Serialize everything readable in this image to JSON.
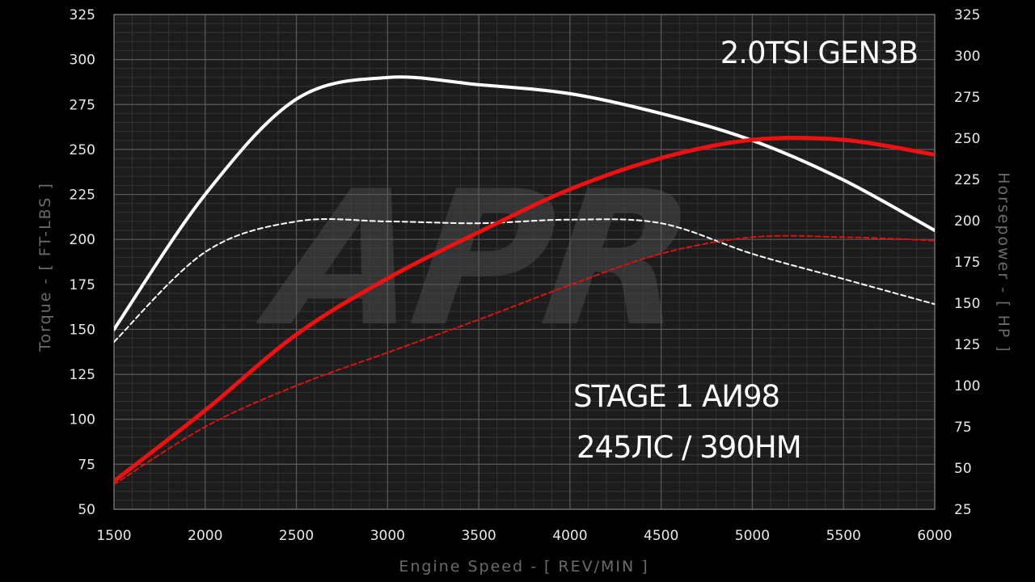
{
  "chart_data": {
    "type": "line",
    "x": [
      1500,
      2000,
      2500,
      3000,
      3500,
      4000,
      4500,
      5000,
      5500,
      6000
    ],
    "xlim": [
      1500,
      6000
    ],
    "x_ticks": [
      1500,
      2000,
      2500,
      3000,
      3500,
      4000,
      4500,
      5000,
      5500,
      6000
    ],
    "ylim_left": [
      50,
      325
    ],
    "y_ticks_left": [
      50,
      75,
      100,
      125,
      150,
      175,
      200,
      225,
      250,
      275,
      300,
      325
    ],
    "ylim_right": [
      25,
      325
    ],
    "y_ticks_right": [
      25,
      50,
      75,
      100,
      125,
      150,
      175,
      200,
      225,
      250,
      275,
      300,
      325
    ],
    "xlabel": "Engine Speed - [ REV/MIN ]",
    "ylabel_left": "Torque - [ FT-LBS ]",
    "ylabel_right": "Horsepower - [ HP ]",
    "grid": true,
    "series": [
      {
        "key": "torque_tuned",
        "color": "#ffffff",
        "style": "solid",
        "axis": "left",
        "values": [
          150,
          225,
          278,
          290,
          286,
          281,
          270,
          255,
          233,
          205
        ]
      },
      {
        "key": "torque_stock",
        "color": "#ffffff",
        "style": "dashed",
        "axis": "left",
        "values": [
          143,
          193,
          210,
          210,
          209,
          211,
          209,
          192,
          178,
          164
        ]
      },
      {
        "key": "hp_tuned",
        "color": "#ee1111",
        "style": "solid",
        "axis": "right",
        "values": [
          42,
          85,
          131,
          165,
          193,
          219,
          238,
          249,
          249,
          240
        ]
      },
      {
        "key": "hp_stock",
        "color": "#dd1111",
        "style": "dashed",
        "axis": "right",
        "values": [
          40,
          75,
          100,
          120,
          140,
          161,
          180,
          190,
          190,
          188
        ]
      }
    ],
    "annotations": {
      "engine": "2.0TSI GEN3B",
      "stage": "STAGE 1 АИ98",
      "output": "245ЛС / 390НМ"
    },
    "watermark": "APR"
  },
  "colors": {
    "background": "#000000",
    "plot_background": "#1c1c1c",
    "grid_major": "#5a5a5a",
    "grid_minor": "#333333"
  }
}
